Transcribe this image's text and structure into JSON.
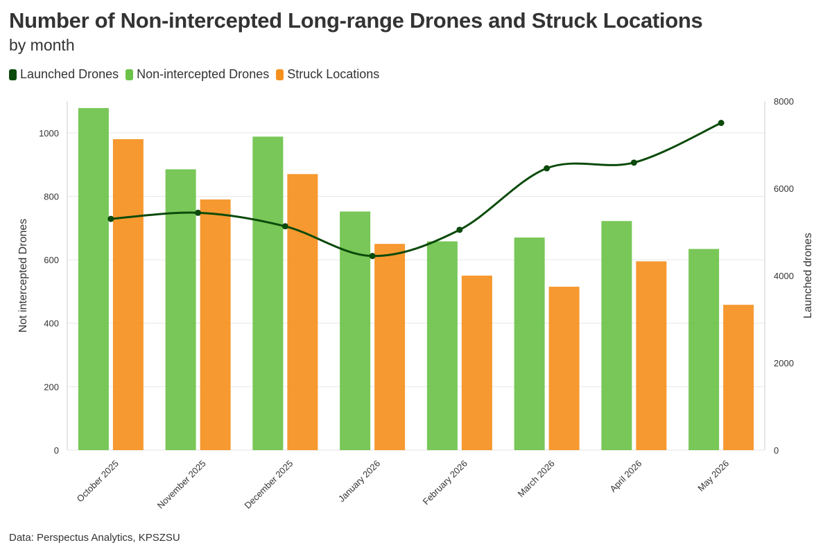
{
  "title": "Number of Non-intercepted Long-range Drones and Struck Locations",
  "subtitle": "by month",
  "source": "Data: Perspectus Analytics, KPSZSU",
  "colors": {
    "launched": "#0b4a0b",
    "nonintercepted": "#6cc24a",
    "struck": "#f5901e",
    "grid": "#e6e6e6",
    "text": "#333333"
  },
  "legend": [
    {
      "label": "Launched Drones",
      "color": "#0b4a0b"
    },
    {
      "label": "Non-intercepted Drones",
      "color": "#6cc24a"
    },
    {
      "label": "Struck Locations",
      "color": "#f5901e"
    }
  ],
  "chart_data": {
    "type": "bar",
    "categories": [
      "October 2025",
      "November 2025",
      "December 2025",
      "January 2026",
      "February 2026",
      "March 2026",
      "April 2026",
      "May 2026"
    ],
    "series": [
      {
        "name": "Non-intercepted Drones",
        "type": "bar",
        "axis": "left",
        "values": [
          1078,
          885,
          988,
          752,
          658,
          670,
          722,
          634
        ]
      },
      {
        "name": "Struck Locations",
        "type": "bar",
        "axis": "left",
        "values": [
          980,
          790,
          870,
          650,
          550,
          515,
          595,
          458
        ]
      },
      {
        "name": "Launched Drones",
        "type": "line",
        "axis": "right",
        "values": [
          5300,
          5440,
          5130,
          4450,
          5050,
          6460,
          6590,
          7500
        ]
      }
    ],
    "ylabel": "Not intercepted Drones",
    "ylabel_right": "Launched drones",
    "ylim": [
      0,
      1100
    ],
    "ylim_right": [
      0,
      8000
    ],
    "yticks": [
      0,
      200,
      400,
      600,
      800,
      1000
    ],
    "yticks_right": [
      0,
      2000,
      4000,
      6000,
      8000
    ],
    "grid": true,
    "legend_position": "top-left"
  }
}
